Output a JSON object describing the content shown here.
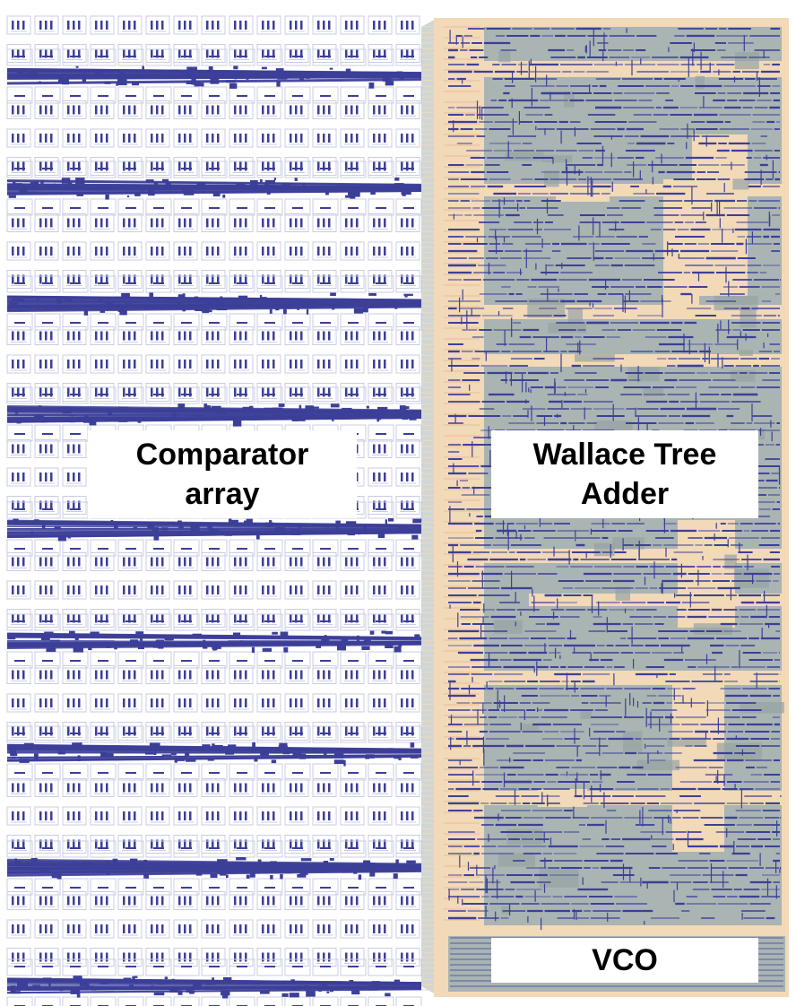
{
  "labels": {
    "comparator": [
      "Comparator",
      "array"
    ],
    "wallace": [
      "Wallace Tree",
      "Adder"
    ],
    "vco": "VCO"
  },
  "regions": [
    {
      "name": "comparator-array"
    },
    {
      "name": "wallace-tree-adder"
    },
    {
      "name": "vco"
    }
  ],
  "colors": {
    "background": "#ffffff",
    "wire_blue": "#3c3f98",
    "cell_outline": "#c9cce3",
    "fill_peach": "#f2d9b7",
    "fill_gray": "#a9b4b3",
    "fill_gray_dark": "#97a2a4",
    "label_bg": "#ffffff",
    "label_text": "#000000"
  }
}
